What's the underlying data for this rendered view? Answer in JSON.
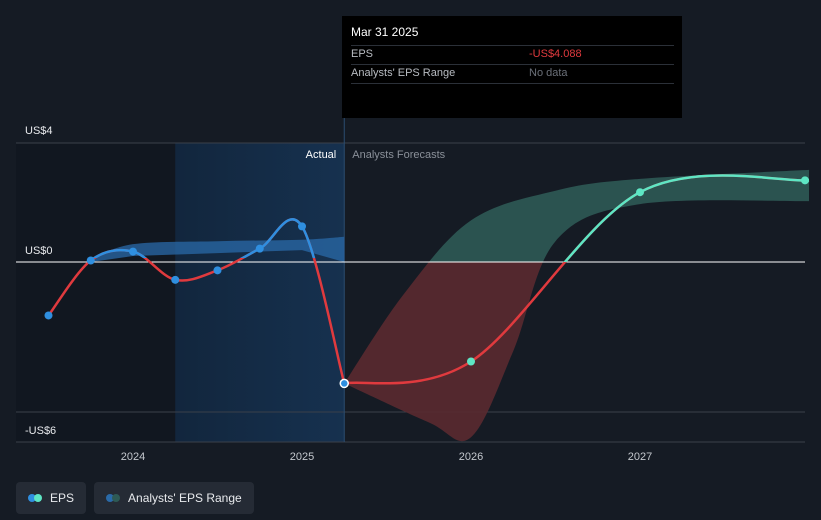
{
  "chart_data": {
    "type": "line",
    "ylim": [
      -6,
      4
    ],
    "y_ticks": [
      {
        "label": "US$4",
        "value": 4
      },
      {
        "label": "US$0",
        "value": 0
      },
      {
        "label": "-US$6",
        "value": -6
      }
    ],
    "x_ticks": [
      {
        "label": "2024",
        "value": 2024.0
      },
      {
        "label": "2025",
        "value": 2025.0
      },
      {
        "label": "2026",
        "value": 2026.0
      },
      {
        "label": "2027",
        "value": 2027.0
      }
    ],
    "regions": {
      "actual_label": "Actual",
      "forecast_label": "Analysts Forecasts",
      "forecast_start": 2025.25,
      "highlight_start": 2024.25
    },
    "eps_actual": [
      {
        "x": 2023.5,
        "y": -1.8
      },
      {
        "x": 2023.75,
        "y": 0.05
      },
      {
        "x": 2024.0,
        "y": 0.35
      },
      {
        "x": 2024.25,
        "y": -0.6
      },
      {
        "x": 2024.5,
        "y": -0.28
      },
      {
        "x": 2024.75,
        "y": 0.45
      },
      {
        "x": 2025.0,
        "y": 1.2
      },
      {
        "x": 2025.25,
        "y": -4.088
      }
    ],
    "eps_forecast": [
      {
        "x": 2025.25,
        "y": -4.088
      },
      {
        "x": 2026.0,
        "y": -3.35
      },
      {
        "x": 2027.0,
        "y": 2.35
      },
      {
        "x": 2028.0,
        "y": 2.75
      }
    ],
    "actual_range": {
      "upper": [
        [
          2023.75,
          0.1
        ],
        [
          2024.0,
          0.6
        ],
        [
          2024.5,
          0.7
        ],
        [
          2025.0,
          0.75
        ],
        [
          2025.25,
          0.85
        ]
      ],
      "lower": [
        [
          2023.75,
          0.0
        ],
        [
          2024.0,
          0.2
        ],
        [
          2024.5,
          0.3
        ],
        [
          2025.0,
          0.4
        ],
        [
          2025.25,
          0.0
        ]
      ]
    },
    "forecast_range": {
      "upper": [
        [
          2025.25,
          -4.088
        ],
        [
          2025.6,
          -1.1
        ],
        [
          2026.0,
          1.4
        ],
        [
          2026.5,
          2.4
        ],
        [
          2027.0,
          2.8
        ],
        [
          2028.0,
          3.1
        ]
      ],
      "lower": [
        [
          2028.0,
          2.05
        ],
        [
          2027.0,
          1.95
        ],
        [
          2026.5,
          0.7
        ],
        [
          2026.25,
          -3.0
        ],
        [
          2026.0,
          -5.9
        ],
        [
          2025.75,
          -5.4
        ],
        [
          2025.25,
          -4.088
        ]
      ]
    },
    "colors": {
      "eps_actual": "#2f8fe0",
      "eps_negative": "#e03a3e",
      "eps_forecast_positive": "#5ee6c4",
      "range_actual": "#2a6aa8",
      "range_positive": "#2e5a55",
      "range_negative": "#5a2a30"
    }
  },
  "tooltip": {
    "date": "Mar 31 2025",
    "rows": [
      {
        "label": "EPS",
        "value": "-US$4.088"
      },
      {
        "label": "Analysts' EPS Range",
        "value": "No data"
      }
    ]
  },
  "legend": [
    {
      "label": "EPS",
      "colors": [
        "#2f8fe0",
        "#5ee6c4"
      ]
    },
    {
      "label": "Analysts' EPS Range",
      "colors": [
        "#2a6aa8",
        "#2e5a55"
      ]
    }
  ]
}
